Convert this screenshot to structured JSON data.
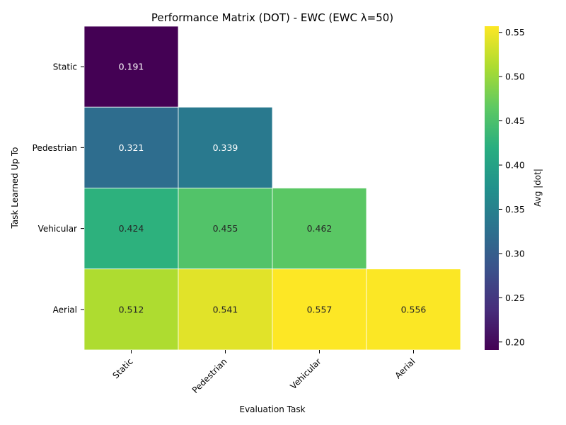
{
  "chart_data": {
    "type": "heatmap",
    "title": "Performance Matrix (DOT) - EWC (EWC λ=50)",
    "xlabel": "Evaluation Task",
    "ylabel": "Task Learned Up To",
    "x_categories": [
      "Static",
      "Pedestrian",
      "Vehicular",
      "Aerial"
    ],
    "y_categories": [
      "Static",
      "Pedestrian",
      "Vehicular",
      "Aerial"
    ],
    "values": [
      [
        0.191,
        null,
        null,
        null
      ],
      [
        0.321,
        0.339,
        null,
        null
      ],
      [
        0.424,
        0.455,
        0.462,
        null
      ],
      [
        0.512,
        0.541,
        0.557,
        0.556
      ]
    ],
    "value_labels": [
      [
        "0.191",
        "",
        "",
        ""
      ],
      [
        "0.321",
        "0.339",
        "",
        ""
      ],
      [
        "0.424",
        "0.455",
        "0.462",
        ""
      ],
      [
        "0.512",
        "0.541",
        "0.557",
        "0.556"
      ]
    ],
    "colormap": "viridis",
    "vmin": 0.191,
    "vmax": 0.557,
    "colorbar": {
      "label": "Avg |dot|",
      "ticks": [
        0.2,
        0.25,
        0.3,
        0.35,
        0.4,
        0.45,
        0.5,
        0.55
      ],
      "tick_labels": [
        "0.20",
        "0.25",
        "0.30",
        "0.35",
        "0.40",
        "0.45",
        "0.50",
        "0.55"
      ]
    }
  }
}
